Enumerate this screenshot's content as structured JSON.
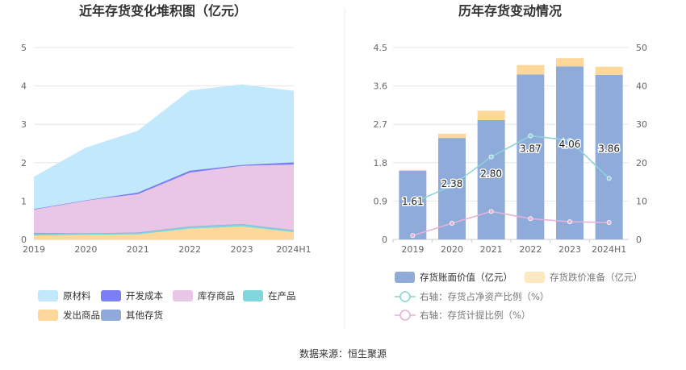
{
  "source_label": "数据来源：恒生聚源",
  "chart_data": [
    {
      "type": "area",
      "stacked": true,
      "title": "近年存货变化堆积图（亿元）",
      "categories": [
        "2019",
        "2020",
        "2021",
        "2022",
        "2023",
        "2024H1"
      ],
      "ylim": [
        0,
        5
      ],
      "yticks": [
        "0",
        "1",
        "2",
        "3",
        "4",
        "5"
      ],
      "grid": true,
      "legend_position": "bottom",
      "series": [
        {
          "name": "发出商品",
          "color": "#fdd89a",
          "values": [
            0.1,
            0.12,
            0.13,
            0.28,
            0.34,
            0.19
          ]
        },
        {
          "name": "在产品",
          "color": "#7fd6dc",
          "values": [
            0.04,
            0.03,
            0.04,
            0.05,
            0.05,
            0.04
          ]
        },
        {
          "name": "其他存货",
          "color": "#8fa9db",
          "values": [
            0.03,
            0.01,
            0.01,
            0.01,
            0.01,
            0.01
          ]
        },
        {
          "name": "库存商品",
          "color": "#eac6e6",
          "values": [
            0.62,
            0.86,
            1.0,
            1.4,
            1.52,
            1.71
          ]
        },
        {
          "name": "开发成本",
          "color": "#7b7ff2",
          "values": [
            0.0,
            0.0,
            0.04,
            0.05,
            0.02,
            0.06
          ]
        },
        {
          "name": "原材料",
          "color": "#c2e9fb",
          "values": [
            0.83,
            1.36,
            1.6,
            2.08,
            2.09,
            1.85
          ]
        }
      ],
      "legend_order": [
        "原材料",
        "开发成本",
        "库存商品",
        "在产品",
        "发出商品",
        "其他存货"
      ]
    },
    {
      "type": "bar",
      "stacked": true,
      "title": "历年存货变动情况",
      "categories": [
        "2019",
        "2020",
        "2021",
        "2022",
        "2023",
        "2024H1"
      ],
      "ylim": [
        0,
        4.5
      ],
      "yticks": [
        "0",
        "0.9",
        "1.8",
        "2.7",
        "3.6",
        "4.5"
      ],
      "y2lim": [
        0,
        50
      ],
      "y2ticks": [
        "0",
        "10",
        "20",
        "30",
        "40",
        "50"
      ],
      "legend_position": "bottom",
      "series": [
        {
          "name": "存货账面价值（亿元）",
          "color": "#8fabda",
          "axis": "left",
          "kind": "bar",
          "values": [
            1.61,
            2.38,
            2.8,
            3.87,
            4.06,
            3.86
          ],
          "labels": [
            "1.61",
            "2.38",
            "2.80",
            "3.87",
            "4.06",
            "3.86"
          ]
        },
        {
          "name": "存货跌价准备（亿元）",
          "color": "#fdd89a",
          "axis": "left",
          "kind": "bar",
          "values": [
            0.02,
            0.1,
            0.22,
            0.22,
            0.19,
            0.19
          ]
        },
        {
          "name": "右轴：存货占净资产比例（%）",
          "color": "#8dd3d9",
          "axis": "right",
          "kind": "line",
          "values": [
            9.5,
            14.0,
            21.5,
            27.0,
            25.8,
            15.9
          ]
        },
        {
          "name": "右轴：存货计提比例（%）",
          "color": "#e6b2d8",
          "axis": "right",
          "kind": "line",
          "values": [
            1.0,
            4.2,
            7.3,
            5.4,
            4.6,
            4.4
          ]
        }
      ]
    }
  ]
}
